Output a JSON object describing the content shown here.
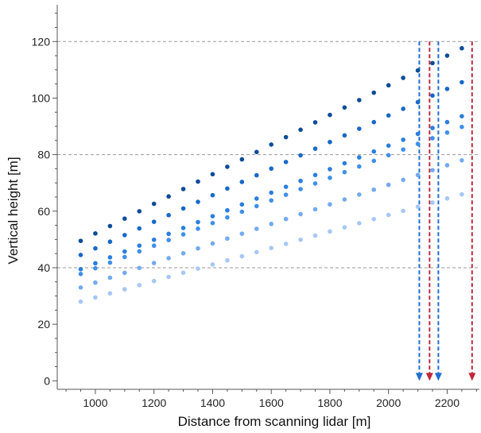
{
  "chart_data": {
    "type": "scatter",
    "title": "",
    "xlabel": "Distance from scanning lidar [m]",
    "ylabel": "Vertical height [m]",
    "xlim": [
      870,
      2310
    ],
    "ylim": [
      -3,
      133
    ],
    "x_ticks": [
      1000,
      1200,
      1400,
      1600,
      1800,
      2000,
      2200
    ],
    "y_ticks": [
      0,
      20,
      40,
      60,
      80,
      100,
      120
    ],
    "grid": false,
    "legend": "none",
    "reference_lines_y": [
      40,
      80,
      120
    ],
    "reference_line_color": "#999999",
    "series": [
      {
        "color": "#a6c8f5",
        "x_start": 950,
        "x_step": 50,
        "count": 27,
        "y_start": 28.0,
        "y_step": 1.46
      },
      {
        "color": "#73aaf0",
        "x_start": 950,
        "x_step": 50,
        "count": 27,
        "y_start": 33.0,
        "y_step": 1.73
      },
      {
        "color": "#3f90e8",
        "x_start": 950,
        "x_step": 50,
        "count": 27,
        "y_start": 37.8,
        "y_step": 2.0
      },
      {
        "color": "#2a7ee0",
        "x_start": 950,
        "x_step": 50,
        "count": 27,
        "y_start": 39.5,
        "y_step": 2.08
      },
      {
        "color": "#1669c8",
        "x_start": 950,
        "x_step": 50,
        "count": 27,
        "y_start": 44.5,
        "y_step": 2.35
      },
      {
        "color": "#0d4c97",
        "x_start": 950,
        "x_step": 50,
        "count": 27,
        "y_start": 49.5,
        "y_step": 2.62
      }
    ],
    "vertical_arrows": [
      {
        "x": 2105,
        "y_top": 120,
        "y_bottom": 0,
        "color": "#1f6fd1"
      },
      {
        "x": 2140,
        "y_top": 120,
        "y_bottom": 0,
        "color": "#c0283c"
      },
      {
        "x": 2170,
        "y_top": 120,
        "y_bottom": 0,
        "color": "#1f6fd1"
      },
      {
        "x": 2285,
        "y_top": 120,
        "y_bottom": 0,
        "color": "#c0283c"
      }
    ]
  }
}
